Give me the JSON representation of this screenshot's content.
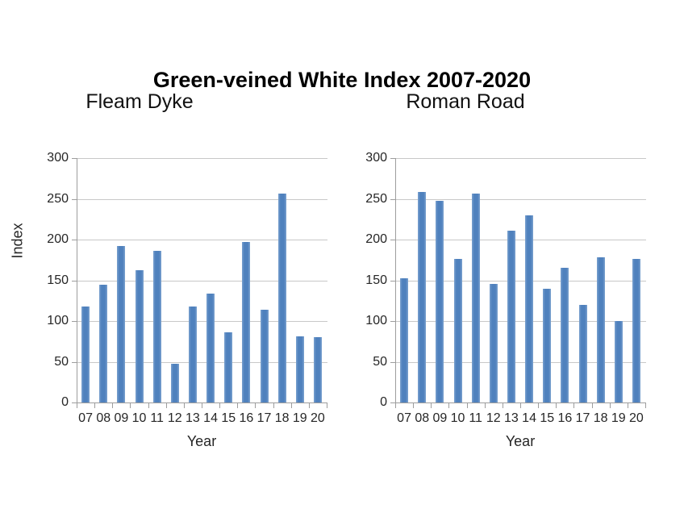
{
  "title": "Green-veined White Index 2007-2020",
  "chart_data": [
    {
      "type": "bar",
      "title": "Fleam Dyke",
      "xlabel": "Year",
      "ylabel": "Index",
      "categories": [
        "07",
        "08",
        "09",
        "10",
        "11",
        "12",
        "13",
        "14",
        "15",
        "16",
        "17",
        "18",
        "19",
        "20"
      ],
      "values": [
        118,
        145,
        192,
        162,
        186,
        48,
        118,
        134,
        86,
        197,
        114,
        256,
        81,
        80
      ],
      "ylim": [
        0,
        300
      ],
      "ytick_interval": 50,
      "yticks": [
        0,
        50,
        100,
        150,
        200,
        250,
        300
      ],
      "grid": true,
      "legend": "none",
      "bar_color": "#4f81bd",
      "gridline_color": "#c8c8c8",
      "axis_color": "#9d9d9d"
    },
    {
      "type": "bar",
      "title": "Roman Road",
      "xlabel": "Year",
      "ylabel": "",
      "categories": [
        "07",
        "08",
        "09",
        "10",
        "11",
        "12",
        "13",
        "14",
        "15",
        "16",
        "17",
        "18",
        "19",
        "20"
      ],
      "values": [
        152,
        258,
        248,
        176,
        256,
        146,
        211,
        230,
        140,
        165,
        120,
        178,
        100,
        176
      ],
      "ylim": [
        0,
        300
      ],
      "ytick_interval": 50,
      "yticks": [
        0,
        50,
        100,
        150,
        200,
        250,
        300
      ],
      "grid": true,
      "legend": "none",
      "bar_color": "#4f81bd",
      "gridline_color": "#c8c8c8",
      "axis_color": "#9d9d9d"
    }
  ]
}
